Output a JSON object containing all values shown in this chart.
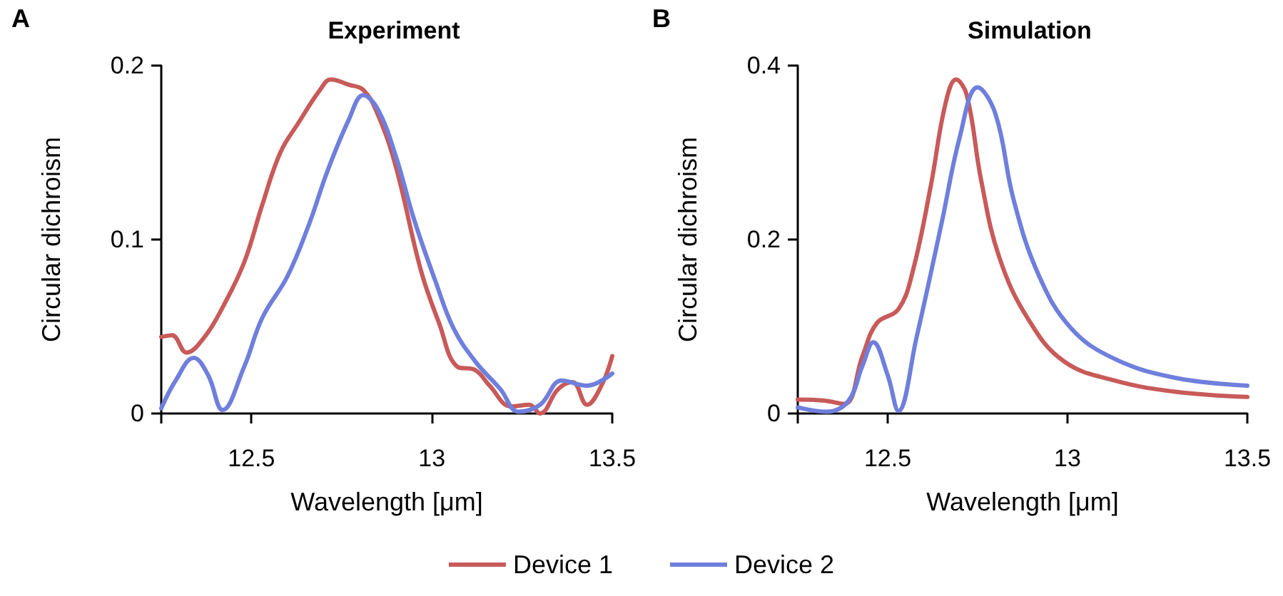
{
  "chart_data": [
    {
      "type": "line",
      "title": "Experiment",
      "xlabel": "Wavelength [μm]",
      "ylabel": "Circular dichroism",
      "annotations": [
        "A"
      ],
      "xlim": [
        12.25,
        13.5
      ],
      "xticks": [
        {
          "value": 12.25,
          "label": null
        },
        12.5,
        13,
        13.5
      ],
      "ylim": [
        0,
        0.2
      ],
      "yticks": [
        0,
        0.1,
        0.2
      ],
      "grid": false,
      "legend": "bottom",
      "marker": "none",
      "line_style": "solid",
      "series": [
        {
          "name": "Device 1",
          "color": "#c85a5a",
          "x": [
            12.25,
            12.28,
            12.32,
            12.37,
            12.42,
            12.48,
            12.53,
            12.58,
            12.63,
            12.69,
            12.72,
            12.77,
            12.81,
            12.85,
            12.9,
            12.97,
            13.02,
            13.07,
            13.12,
            13.16,
            13.22,
            13.27,
            13.3,
            13.35,
            13.39,
            13.43,
            13.47,
            13.5
          ],
          "values": [
            0.044,
            0.045,
            0.035,
            0.044,
            0.061,
            0.087,
            0.12,
            0.15,
            0.167,
            0.186,
            0.192,
            0.189,
            0.186,
            0.172,
            0.142,
            0.082,
            0.052,
            0.027,
            0.025,
            0.016,
            0.004,
            0.005,
            0.0,
            0.014,
            0.018,
            0.005,
            0.016,
            0.033
          ]
        },
        {
          "name": "Device 2",
          "color": "#6f7fdc",
          "x": [
            12.25,
            12.29,
            12.34,
            12.38,
            12.42,
            12.48,
            12.53,
            12.6,
            12.66,
            12.71,
            12.77,
            12.81,
            12.85,
            12.9,
            12.95,
            13.01,
            13.06,
            13.12,
            13.19,
            13.24,
            13.3,
            13.36,
            13.43,
            13.5
          ],
          "values": [
            0.003,
            0.019,
            0.032,
            0.022,
            0.002,
            0.027,
            0.055,
            0.079,
            0.109,
            0.139,
            0.169,
            0.183,
            0.175,
            0.148,
            0.112,
            0.076,
            0.049,
            0.03,
            0.014,
            0.001,
            0.005,
            0.019,
            0.016,
            0.023
          ]
        }
      ]
    },
    {
      "type": "line",
      "title": "Simulation",
      "xlabel": "Wavelength [μm]",
      "ylabel": "Circular dichroism",
      "annotations": [
        "B"
      ],
      "xlim": [
        12.25,
        13.5
      ],
      "xticks": [
        {
          "value": 12.25,
          "label": null
        },
        12.5,
        13,
        13.5
      ],
      "ylim": [
        0,
        0.4
      ],
      "yticks": [
        0,
        0.2,
        0.4
      ],
      "grid": false,
      "marker": "none",
      "line_style": "solid",
      "series": [
        {
          "color": "#c85a5a",
          "x": [
            12.25,
            12.32,
            12.38,
            12.43,
            12.47,
            12.53,
            12.57,
            12.62,
            12.66,
            12.69,
            12.72,
            12.76,
            12.81,
            12.89,
            12.99,
            13.13,
            13.3,
            13.5
          ],
          "values": [
            0.016,
            0.015,
            0.011,
            0.066,
            0.104,
            0.12,
            0.164,
            0.262,
            0.355,
            0.384,
            0.366,
            0.268,
            0.18,
            0.109,
            0.06,
            0.038,
            0.025,
            0.019
          ]
        },
        {
          "color": "#6f7fdc",
          "x": [
            12.25,
            12.33,
            12.39,
            12.43,
            12.46,
            12.5,
            12.53,
            12.58,
            12.65,
            12.7,
            12.75,
            12.8,
            12.85,
            12.92,
            13.01,
            13.13,
            13.3,
            13.5
          ],
          "values": [
            0.007,
            0.002,
            0.014,
            0.055,
            0.082,
            0.044,
            0.003,
            0.087,
            0.219,
            0.317,
            0.375,
            0.344,
            0.246,
            0.159,
            0.098,
            0.063,
            0.041,
            0.032
          ]
        }
      ]
    }
  ]
}
